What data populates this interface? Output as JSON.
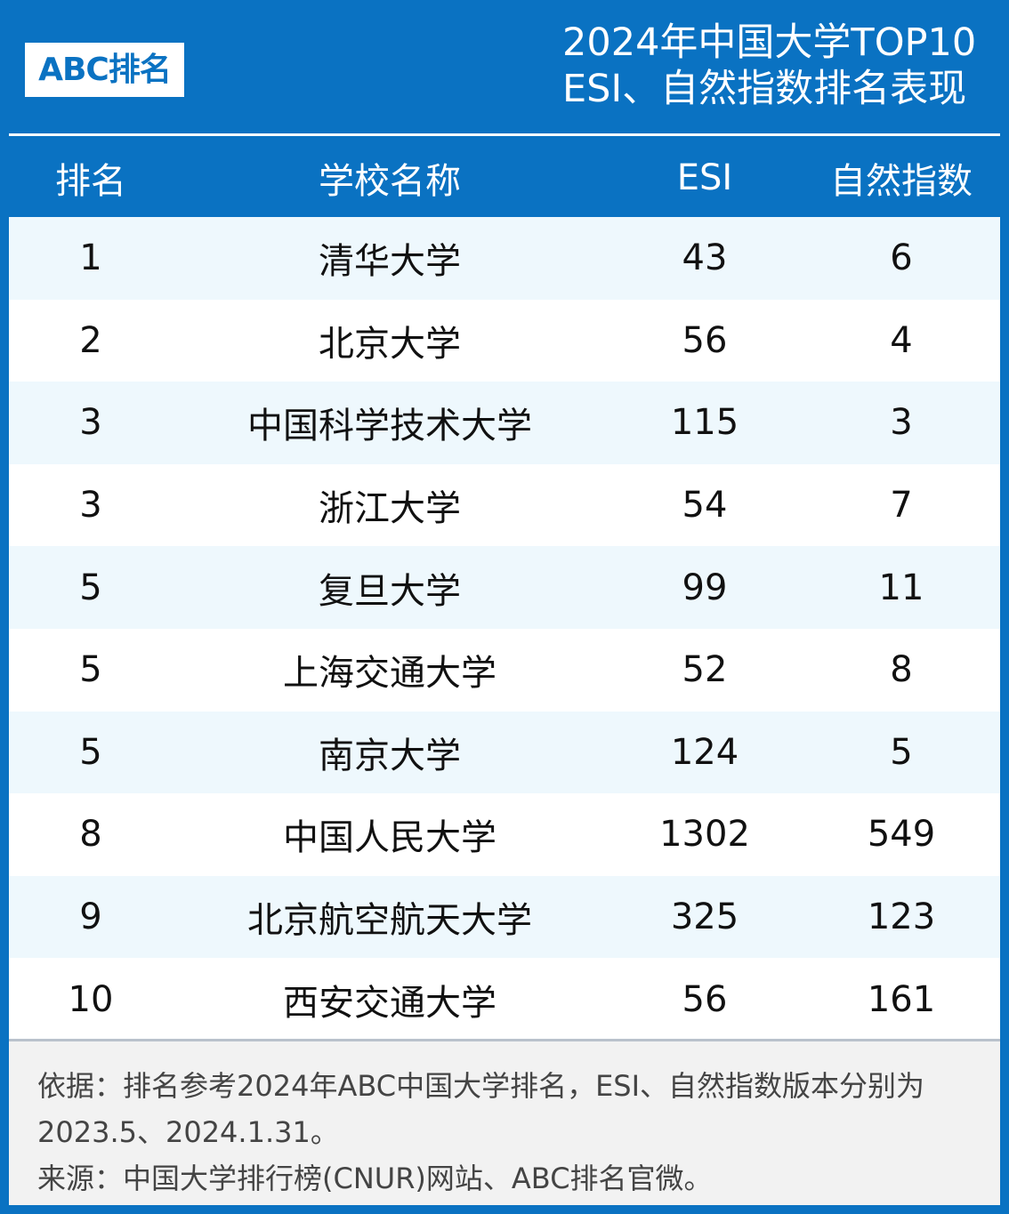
{
  "header": {
    "logo_text": "ABC排名",
    "title_line1": "2024年中国大学TOP10",
    "title_line2": "ESI、自然指数排名表现"
  },
  "table": {
    "columns": [
      "排名",
      "学校名称",
      "ESI",
      "自然指数"
    ],
    "rows": [
      [
        "1",
        "清华大学",
        "43",
        "6"
      ],
      [
        "2",
        "北京大学",
        "56",
        "4"
      ],
      [
        "3",
        "中国科学技术大学",
        "115",
        "3"
      ],
      [
        "3",
        "浙江大学",
        "54",
        "7"
      ],
      [
        "5",
        "复旦大学",
        "99",
        "11"
      ],
      [
        "5",
        "上海交通大学",
        "52",
        "8"
      ],
      [
        "5",
        "南京大学",
        "124",
        "5"
      ],
      [
        "8",
        "中国人民大学",
        "1302",
        "549"
      ],
      [
        "9",
        "北京航空航天大学",
        "325",
        "123"
      ],
      [
        "10",
        "西安交通大学",
        "56",
        "161"
      ]
    ]
  },
  "footer": {
    "basis": "依据：排名参考2024年ABC中国大学排名，ESI、自然指数版本分别为2023.5、2024.1.31。",
    "source": "来源：中国大学排行榜(CNUR)网站、ABC排名官微。"
  },
  "colors": {
    "brand_blue": "#0a72c2",
    "row_stripe": "#eef8fd"
  }
}
